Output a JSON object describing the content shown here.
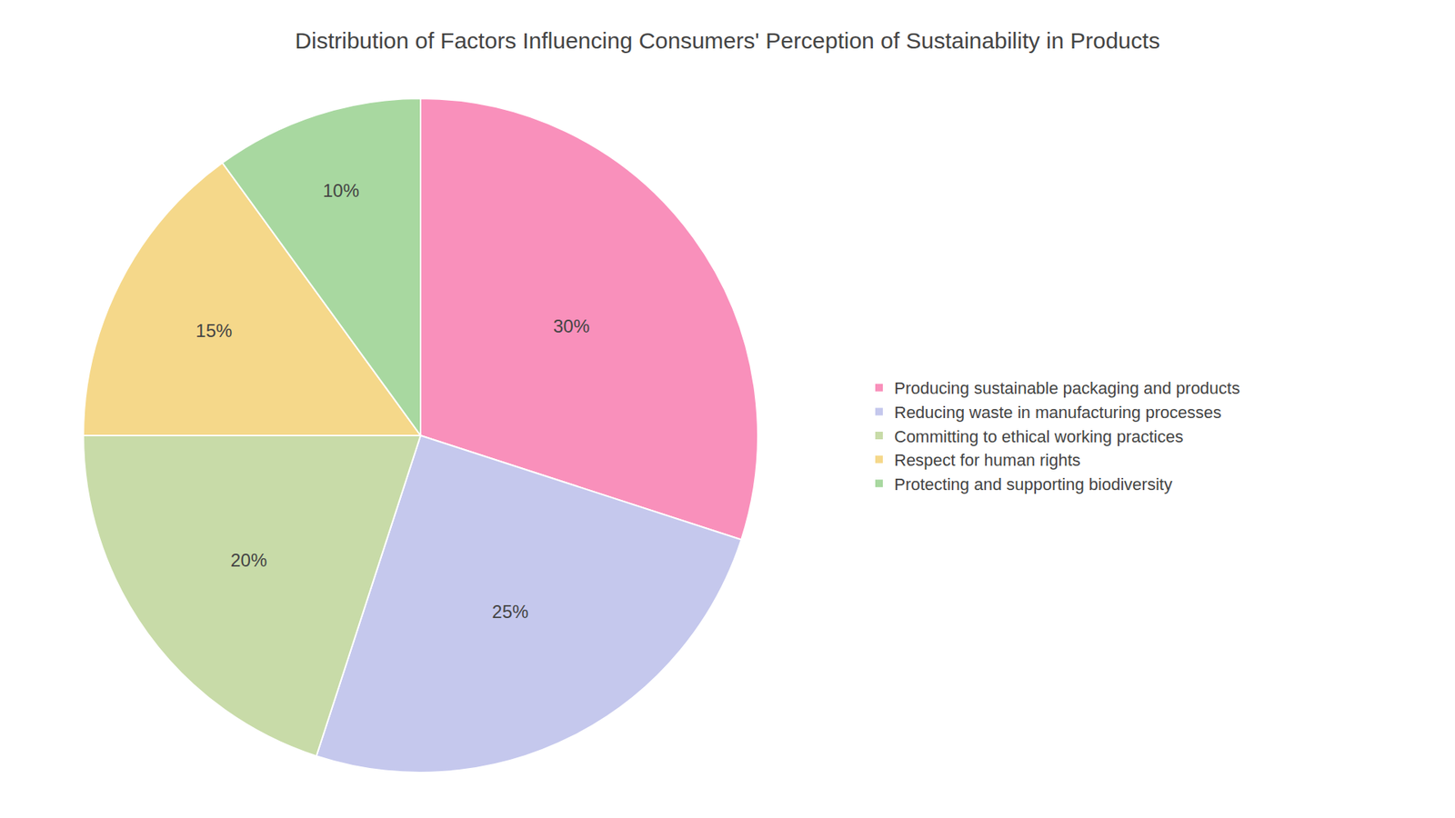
{
  "chart_data": {
    "type": "pie",
    "title": "Distribution of Factors Influencing Consumers' Perception of Sustainability in Products",
    "categories": [
      "Producing sustainable packaging and products",
      "Reducing waste in manufacturing processes",
      "Committing to ethical working practices",
      "Respect for human rights",
      "Protecting and supporting biodiversity"
    ],
    "values": [
      30,
      25,
      20,
      15,
      10
    ],
    "value_labels": [
      "30%",
      "25%",
      "20%",
      "15%",
      "10%"
    ],
    "colors": [
      "#F990BB",
      "#C5C8ED",
      "#C8DBA8",
      "#F5D88A",
      "#A8D8A0"
    ],
    "data_labels": true,
    "legend": "right"
  }
}
